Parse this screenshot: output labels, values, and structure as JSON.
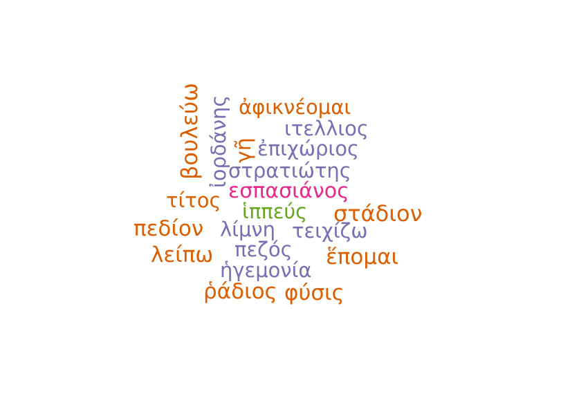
{
  "word_cloud": {
    "words": [
      {
        "key": "afikneomai",
        "text": "ἀφικνέομαι",
        "color": "#d95f02"
      },
      {
        "key": "itellios",
        "text": "ιτελλιος",
        "color": "#7570b3"
      },
      {
        "key": "epichorios",
        "text": "ἐπιχώριος",
        "color": "#7570b3"
      },
      {
        "key": "stratiotis",
        "text": "στρατιώτης",
        "color": "#7570b3"
      },
      {
        "key": "espasianos",
        "text": "εσπασιάνος",
        "color": "#e7298a"
      },
      {
        "key": "titos",
        "text": "τίτος",
        "color": "#d95f02"
      },
      {
        "key": "hippeus",
        "text": "ἱππεύς",
        "color": "#66a61e"
      },
      {
        "key": "stadion",
        "text": "στάδιον",
        "color": "#d95f02"
      },
      {
        "key": "pedion",
        "text": "πεδίον",
        "color": "#d95f02"
      },
      {
        "key": "limni",
        "text": "λίμνη",
        "color": "#7570b3"
      },
      {
        "key": "teichizo",
        "text": "τειχίζω",
        "color": "#7570b3"
      },
      {
        "key": "pezos",
        "text": "πεζός",
        "color": "#7570b3"
      },
      {
        "key": "leipo",
        "text": "λείπω",
        "color": "#d95f02"
      },
      {
        "key": "epomai",
        "text": "ἕπομαι",
        "color": "#d95f02"
      },
      {
        "key": "hegemonia",
        "text": "ἡγεμονία",
        "color": "#7570b3"
      },
      {
        "key": "radios",
        "text": "ῥάδιος",
        "color": "#d95f02"
      },
      {
        "key": "physis",
        "text": "φύσις",
        "color": "#d95f02"
      },
      {
        "key": "bouleuo",
        "text": "βουλεύω",
        "color": "#d95f02"
      },
      {
        "key": "iordanis",
        "text": "ἰορδάνης",
        "color": "#7570b3"
      },
      {
        "key": "gi",
        "text": "γῆ",
        "color": "#d95f02"
      }
    ]
  }
}
